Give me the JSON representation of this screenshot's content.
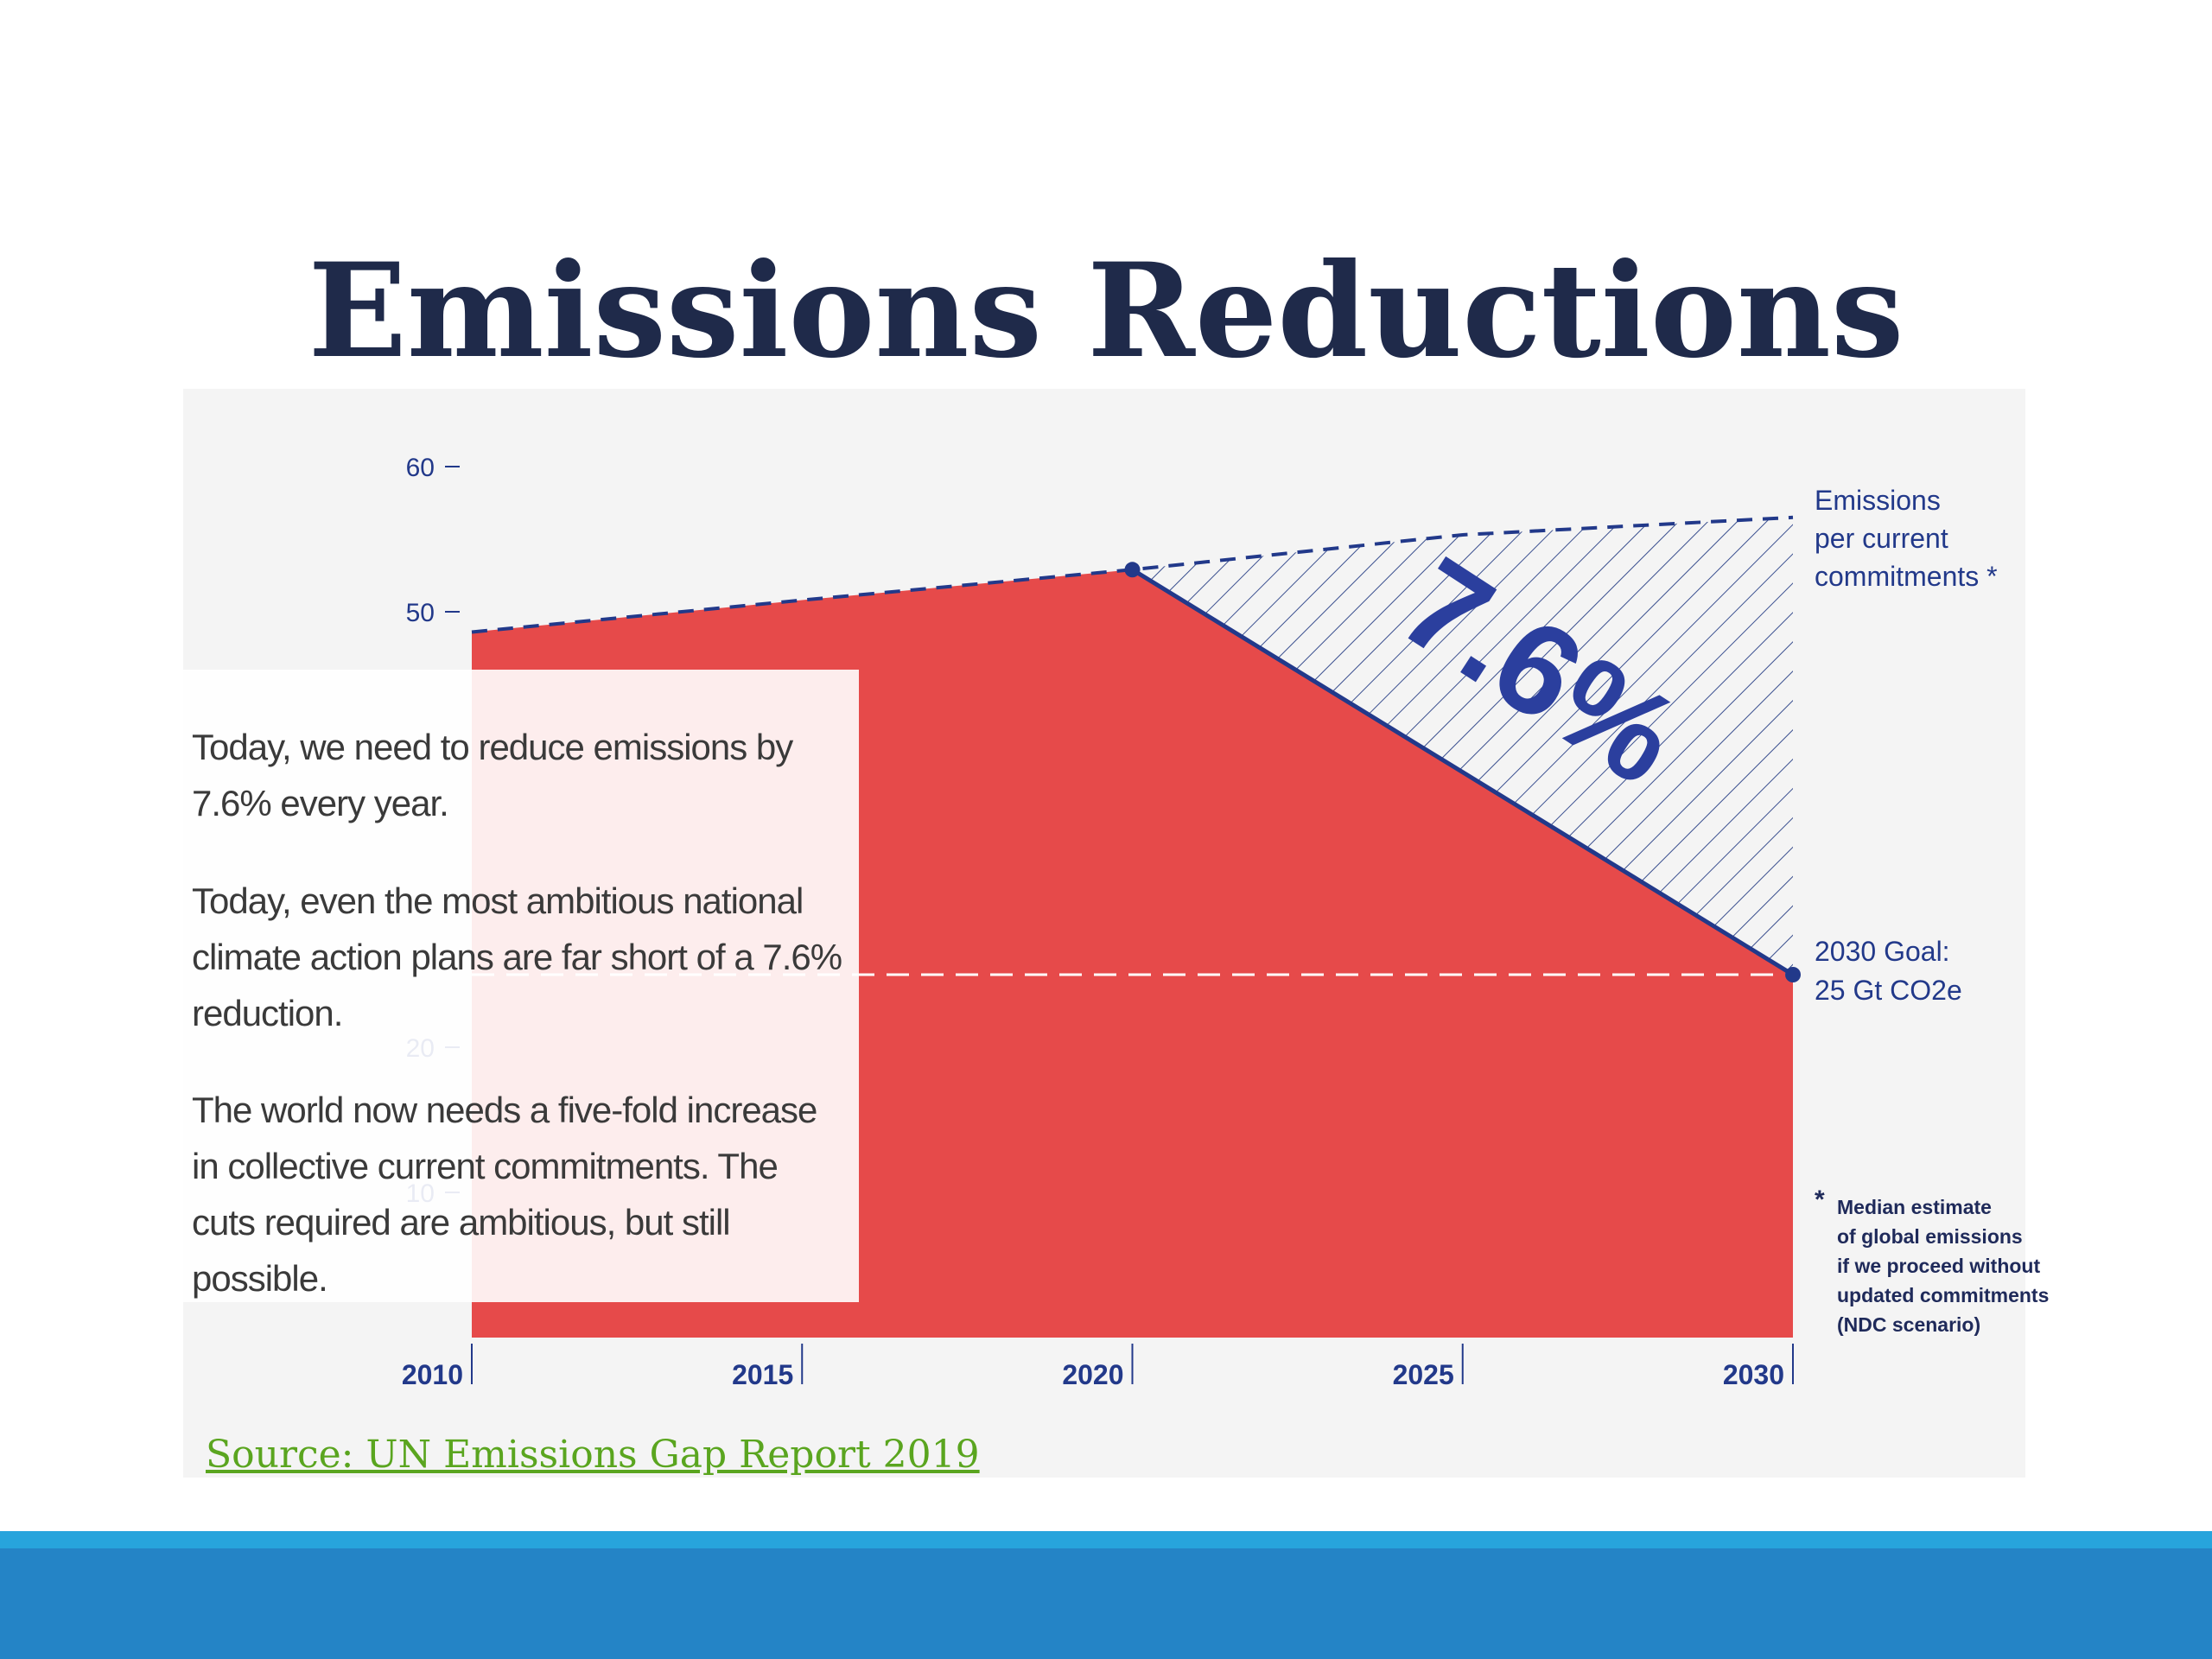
{
  "slide": {
    "title": "Emissions Reductions",
    "source": "Source: UN Emissions Gap Report 2019"
  },
  "text_box": {
    "paragraphs": [
      "Today, we need to reduce emissions by 7.6% every year.",
      "Today, even the most ambitious national climate action plans are far short of a 7.6% reduction.",
      "The world now needs a five-fold increase in collective current commitments. The cuts required are ambitious, but still possible."
    ]
  },
  "chart_data": {
    "type": "area",
    "x_ticks": [
      "2010",
      "2015",
      "2020",
      "2025",
      "2030"
    ],
    "y_ticks": [
      "10",
      "20",
      "50",
      "60"
    ],
    "xlim": [
      2010,
      2030
    ],
    "ylim": [
      0,
      60
    ],
    "series": [
      {
        "x": [
          2010,
          2015,
          2020,
          2025,
          2030
        ],
        "values": [
          48.6,
          50.8,
          52.9,
          40.3,
          25
        ]
      },
      {
        "x": [
          2010,
          2015,
          2020,
          2025,
          2030
        ],
        "values": [
          48.6,
          50.8,
          52.9,
          55.3,
          56.5
        ]
      }
    ],
    "annotations": {
      "reduction_rate": "7.6%",
      "current_commitments_label": "Emissions per current commitments *",
      "goal_label_line1": "2030 Goal:",
      "goal_label_line2": "25 Gt CO2e",
      "footnote": "* Median estimate of global emissions if we proceed without updated commitments (NDC scenario)"
    },
    "goal_value": 25,
    "colors": {
      "area": "#e64a4a",
      "axis": "#22398a",
      "hatch": "#3a4f8f",
      "goal_line": "#ffffff",
      "commitment_line": "#22398a"
    }
  },
  "footer": {
    "colors": {
      "light": "#27a4dc",
      "dark": "#2484c6"
    }
  }
}
